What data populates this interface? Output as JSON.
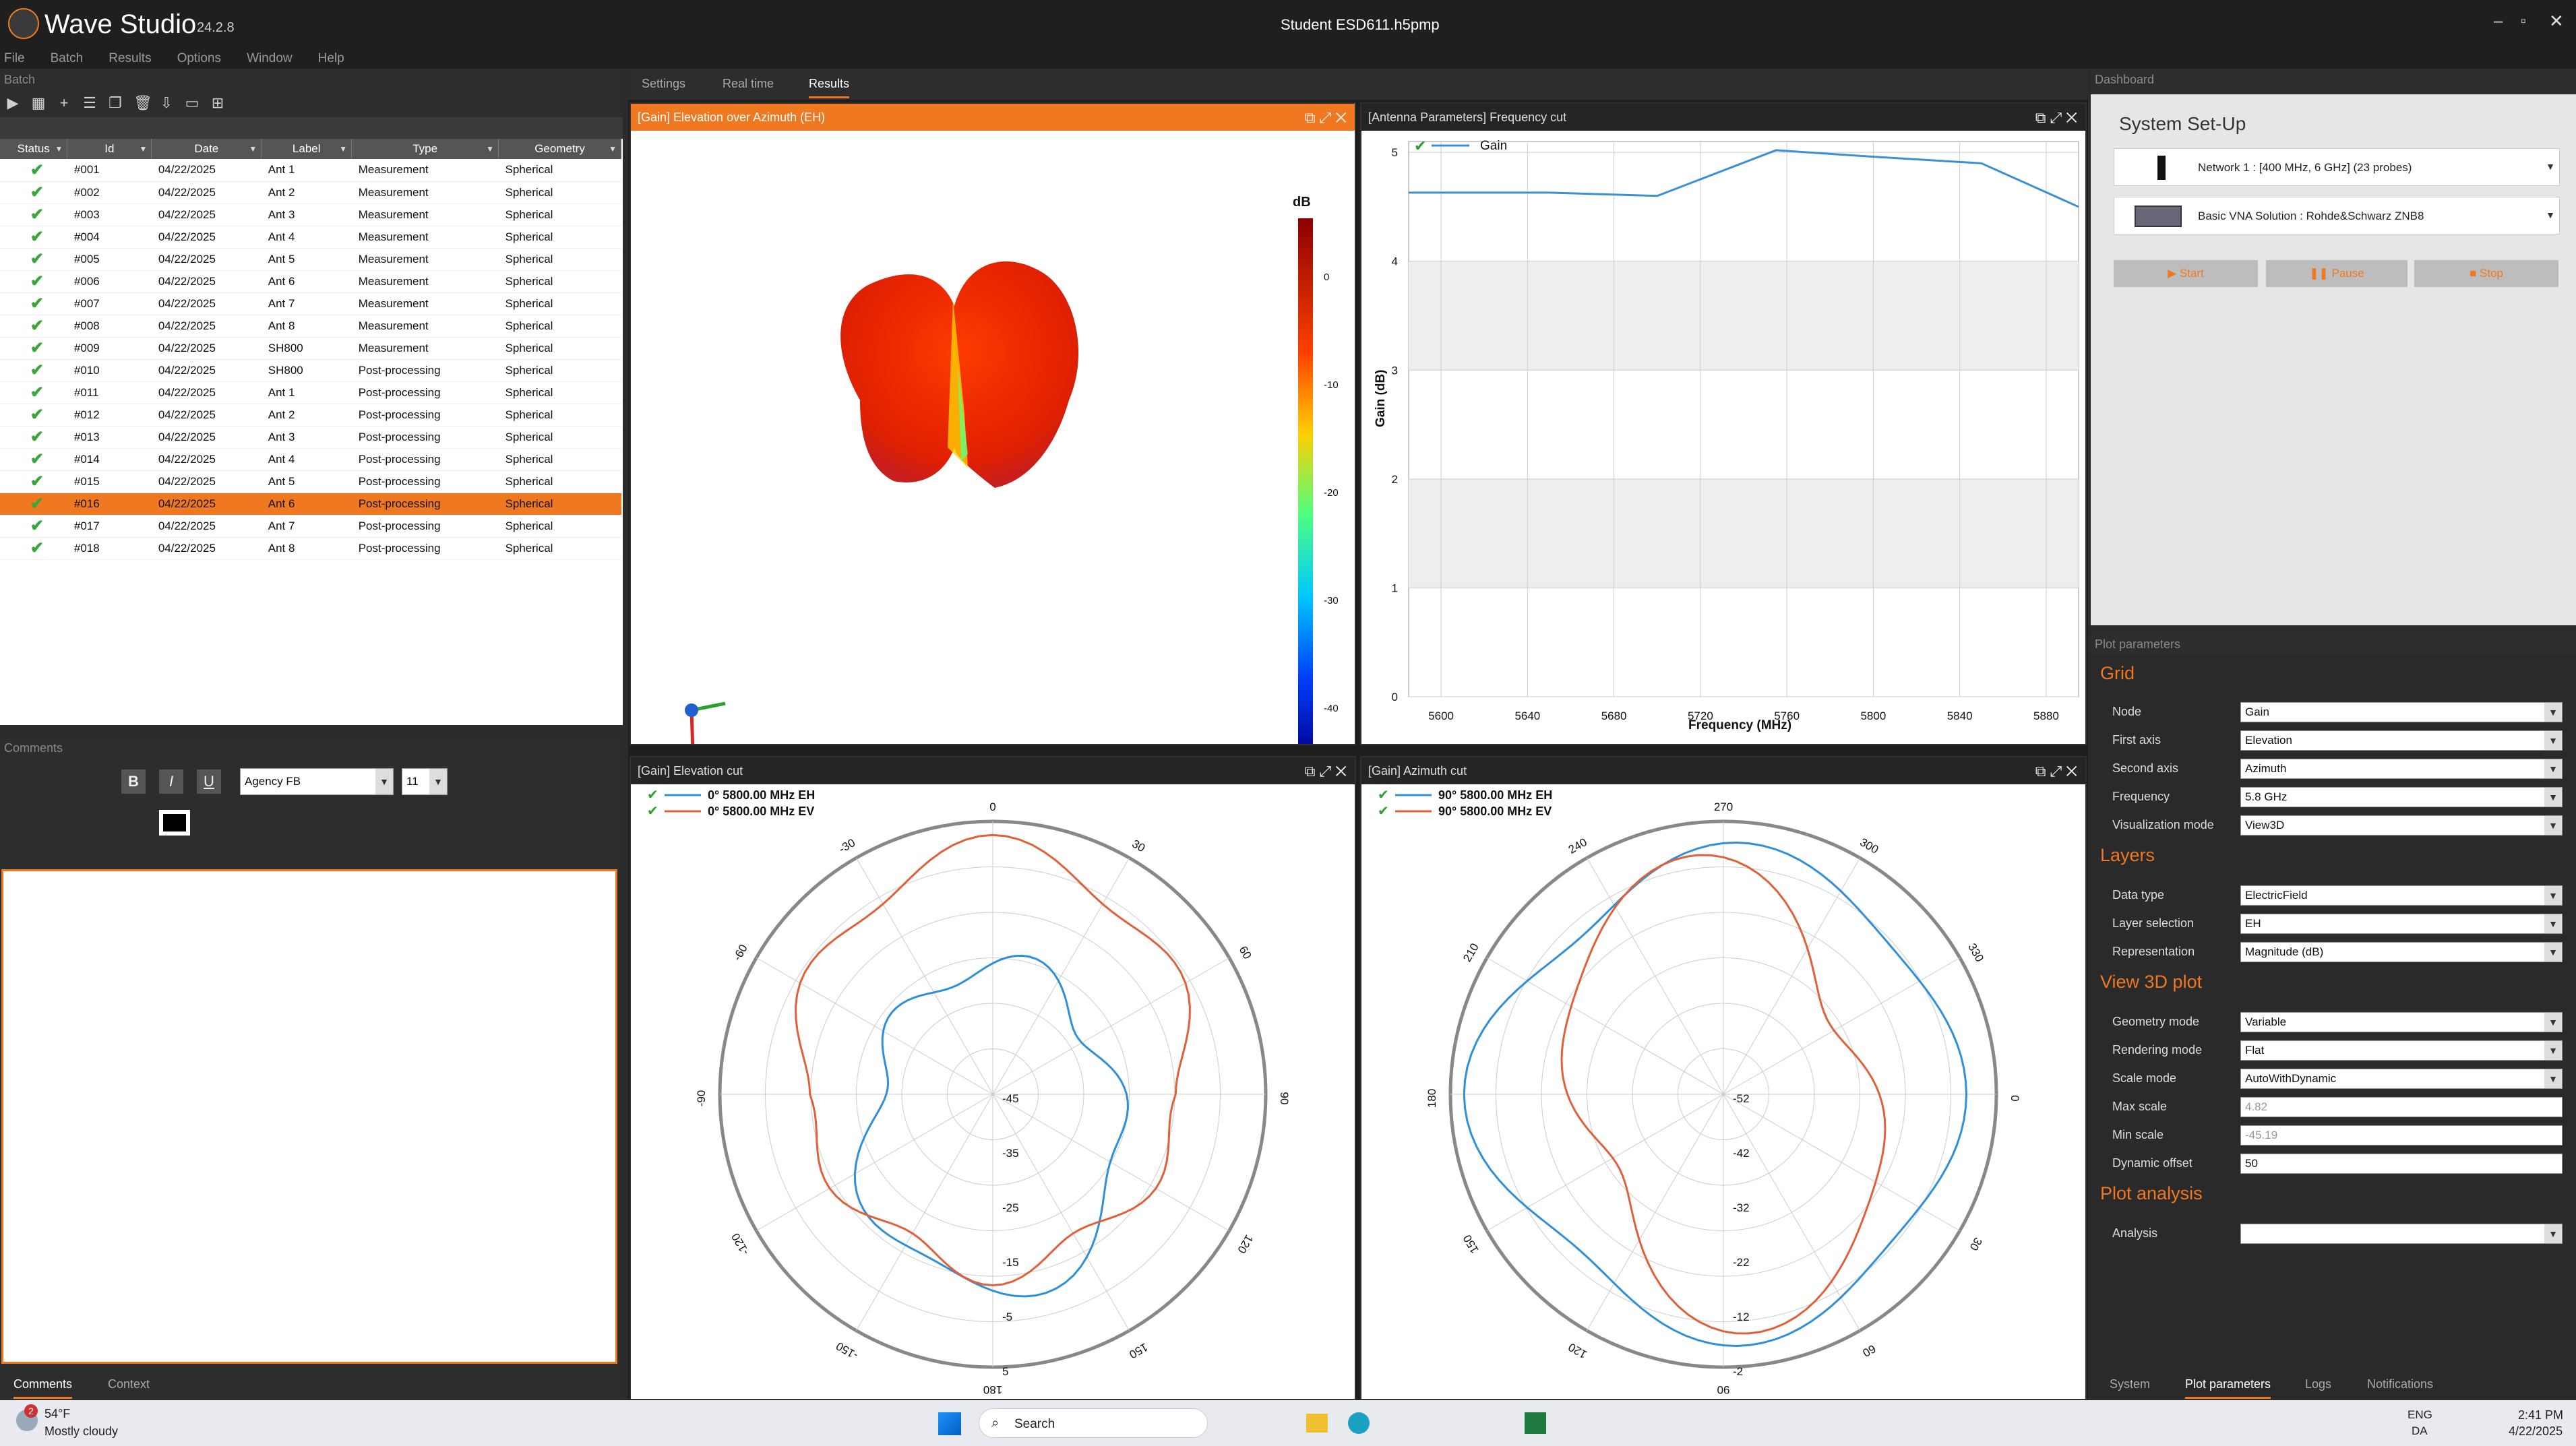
{
  "app": {
    "name": "Wave Studio",
    "version": "24.2.8",
    "file": "Student ESD611.h5pmp"
  },
  "menu": [
    "File",
    "Batch",
    "Results",
    "Options",
    "Window",
    "Help"
  ],
  "panels": {
    "batch": "Batch",
    "comments": "Comments",
    "dashboard": "Dashboard",
    "plot_params": "Plot parameters"
  },
  "center_tabs": [
    "Settings",
    "Real time",
    "Results"
  ],
  "batch": {
    "columns": [
      "Status",
      "Id",
      "Date",
      "Label",
      "Type",
      "Geometry"
    ],
    "rows": [
      [
        "#001",
        "04/22/2025",
        "Ant 1",
        "Measurement",
        "Spherical"
      ],
      [
        "#002",
        "04/22/2025",
        "Ant 2",
        "Measurement",
        "Spherical"
      ],
      [
        "#003",
        "04/22/2025",
        "Ant 3",
        "Measurement",
        "Spherical"
      ],
      [
        "#004",
        "04/22/2025",
        "Ant 4",
        "Measurement",
        "Spherical"
      ],
      [
        "#005",
        "04/22/2025",
        "Ant 5",
        "Measurement",
        "Spherical"
      ],
      [
        "#006",
        "04/22/2025",
        "Ant 6",
        "Measurement",
        "Spherical"
      ],
      [
        "#007",
        "04/22/2025",
        "Ant 7",
        "Measurement",
        "Spherical"
      ],
      [
        "#008",
        "04/22/2025",
        "Ant 8",
        "Measurement",
        "Spherical"
      ],
      [
        "#009",
        "04/22/2025",
        "SH800",
        "Measurement",
        "Spherical"
      ],
      [
        "#010",
        "04/22/2025",
        "SH800",
        "Post-processing",
        "Spherical"
      ],
      [
        "#011",
        "04/22/2025",
        "Ant 1",
        "Post-processing",
        "Spherical"
      ],
      [
        "#012",
        "04/22/2025",
        "Ant 2",
        "Post-processing",
        "Spherical"
      ],
      [
        "#013",
        "04/22/2025",
        "Ant 3",
        "Post-processing",
        "Spherical"
      ],
      [
        "#014",
        "04/22/2025",
        "Ant 4",
        "Post-processing",
        "Spherical"
      ],
      [
        "#015",
        "04/22/2025",
        "Ant 5",
        "Post-processing",
        "Spherical"
      ],
      [
        "#016",
        "04/22/2025",
        "Ant 6",
        "Post-processing",
        "Spherical"
      ],
      [
        "#017",
        "04/22/2025",
        "Ant 7",
        "Post-processing",
        "Spherical"
      ],
      [
        "#018",
        "04/22/2025",
        "Ant 8",
        "Post-processing",
        "Spherical"
      ]
    ],
    "selected_index": 15
  },
  "comments": {
    "font": "Agency FB",
    "size": "11",
    "tabs": [
      "Comments",
      "Context"
    ]
  },
  "plots": {
    "p3d": {
      "title": "[Gain] Elevation over Azimuth (EH)",
      "unit": "dB",
      "ticks": [
        "0",
        "-10",
        "-20",
        "-30",
        "-40"
      ]
    },
    "freq": {
      "title": "[Antenna Parameters] Frequency cut",
      "legend": "Gain",
      "ylabel": "Gain (dB)",
      "xlabel": "Frequency (MHz)",
      "yticks": [
        "0",
        "1",
        "2",
        "3",
        "4",
        "5"
      ],
      "xticks": [
        "5600",
        "5640",
        "5680",
        "5720",
        "5760",
        "5800",
        "5840",
        "5880"
      ]
    },
    "elev": {
      "title": "[Gain] Elevation cut",
      "legend": [
        "0° 5800.00 MHz EH",
        "0° 5800.00 MHz EV"
      ],
      "angles": [
        "0",
        "30",
        "60",
        "90",
        "120",
        "150",
        "180",
        "-150",
        "-120",
        "-90",
        "-60",
        "-30"
      ],
      "radial": [
        "-45",
        "-35",
        "-25",
        "-15",
        "-5",
        "5"
      ]
    },
    "azim": {
      "title": "[Gain] Azimuth cut",
      "legend": [
        "90° 5800.00 MHz EH",
        "90° 5800.00 MHz EV"
      ],
      "angles": [
        "270",
        "300",
        "330",
        "0",
        "30",
        "60",
        "90",
        "120",
        "150",
        "180",
        "210",
        "240"
      ],
      "radial": [
        "-52",
        "-42",
        "-32",
        "-22",
        "-12",
        "-2"
      ]
    }
  },
  "chart_data": {
    "type": "line",
    "title": "[Antenna Parameters] Frequency cut",
    "xlabel": "Frequency (MHz)",
    "ylabel": "Gain (dB)",
    "xlim": [
      5585,
      5895
    ],
    "ylim": [
      0,
      5.1
    ],
    "series": [
      {
        "name": "Gain",
        "x": [
          5585,
          5650,
          5700,
          5755,
          5800,
          5850,
          5895
        ],
        "y": [
          4.63,
          4.63,
          4.6,
          5.02,
          4.96,
          4.9,
          4.5
        ]
      }
    ]
  },
  "dashboard": {
    "title": "System Set-Up",
    "network": "Network 1 : [400 MHz, 6 GHz] (23 probes)",
    "vna": "Basic VNA Solution : Rohde&Schwarz ZNB8",
    "buttons": [
      "Start",
      "Pause",
      "Stop"
    ]
  },
  "params": {
    "grid": "Grid",
    "layers": "Layers",
    "view3d": "View 3D plot",
    "analysis_sec": "Plot analysis",
    "fields": [
      [
        "Node",
        "Gain"
      ],
      [
        "First axis",
        "Elevation"
      ],
      [
        "Second axis",
        "Azimuth"
      ],
      [
        "Frequency",
        "5.8 GHz"
      ],
      [
        "Visualization mode",
        "View3D"
      ],
      [
        "Data type",
        "ElectricField"
      ],
      [
        "Layer selection",
        "EH"
      ],
      [
        "Representation",
        "Magnitude (dB)"
      ],
      [
        "Geometry mode",
        "Variable"
      ],
      [
        "Rendering mode",
        "Flat"
      ],
      [
        "Scale mode",
        "AutoWithDynamic"
      ],
      [
        "Max scale",
        "4.82"
      ],
      [
        "Min scale",
        "-45.19"
      ],
      [
        "Dynamic offset",
        "50"
      ],
      [
        "Analysis",
        ""
      ]
    ]
  },
  "right_tabs": [
    "System",
    "Plot parameters",
    "Logs",
    "Notifications"
  ],
  "taskbar": {
    "temp": "54°F",
    "weather": "Mostly cloudy",
    "badge": "2",
    "search": "Search",
    "lang1": "ENG",
    "lang2": "DA",
    "time": "2:41 PM",
    "date": "4/22/2025"
  },
  "colors": {
    "accent": "#f07820",
    "eh": "#2f8fd8",
    "ev": "#e0603a"
  }
}
